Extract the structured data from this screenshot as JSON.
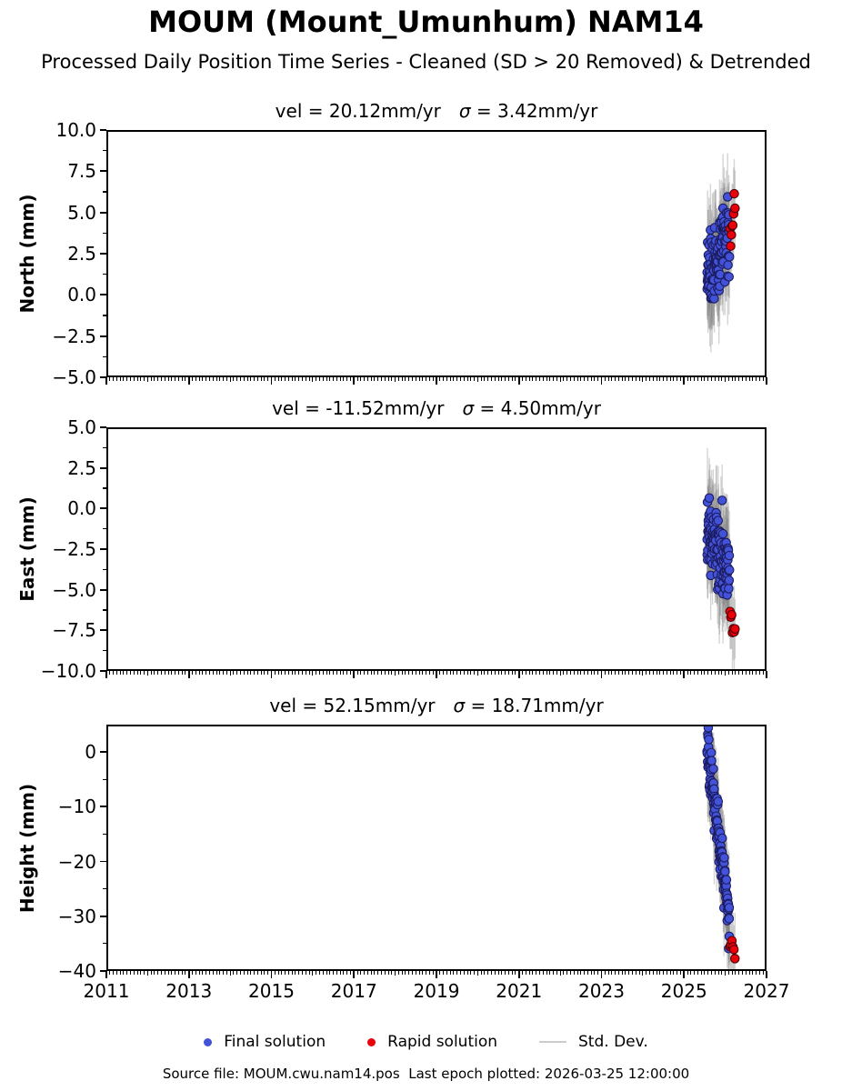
{
  "figure": {
    "title": "MOUM (Mount_Umunhum) NAM14",
    "subtitle": "Processed Daily Position Time Series - Cleaned (SD > 20 Removed) & Detrended",
    "footer": "Source file: MOUM.cwu.nam14.pos  Last epoch plotted: 2026-03-25 12:00:00"
  },
  "legend": {
    "items": [
      {
        "label": "Final solution",
        "color": "#4353d9",
        "type": "dot"
      },
      {
        "label": "Rapid solution",
        "color": "#e8000b",
        "type": "dot"
      },
      {
        "label": "Std. Dev.",
        "color": "#cccccc",
        "type": "line"
      }
    ]
  },
  "x_axis": {
    "lim": [
      2011,
      2027
    ],
    "tick_values": [
      2011,
      2013,
      2015,
      2017,
      2019,
      2021,
      2023,
      2025,
      2027
    ],
    "tick_labels": [
      "2011",
      "2013",
      "2015",
      "2017",
      "2019",
      "2021",
      "2023",
      "2025",
      "2027"
    ],
    "minor_tick_interval_years": 0.08333
  },
  "chart_data": [
    {
      "type": "scatter",
      "id": "north",
      "title_vel": "vel = 20.12mm/yr",
      "title_sigma": "σ = 3.42mm/yr",
      "ylabel": "North (mm)",
      "ylim": [
        -5,
        10
      ],
      "yticks": [
        {
          "v": 10.0,
          "label": "10.0"
        },
        {
          "v": 7.5,
          "label": "7.5"
        },
        {
          "v": 5.0,
          "label": "5.0"
        },
        {
          "v": 2.5,
          "label": "2.5"
        },
        {
          "v": 0.0,
          "label": "0.0"
        },
        {
          "v": -2.5,
          "label": "−2.5"
        },
        {
          "v": -5.0,
          "label": "−5.0"
        }
      ],
      "series": [
        {
          "name": "Final solution",
          "color": "#4353d9",
          "edge": "#1b1b5e",
          "x_start": 2025.56,
          "x_end": 2026.1,
          "n": 135,
          "y_start": 0.9,
          "y_end": 4.0,
          "y_scatter_sd": 1.05,
          "err_halflen_mm": 2.5
        },
        {
          "name": "Rapid solution",
          "color": "#e8000b",
          "edge": "#4d0005",
          "x_start": 2026.115,
          "x_end": 2026.235,
          "n": 8,
          "y_start": 3.6,
          "y_end": 5.9,
          "y_scatter_sd": 0.55,
          "err_halflen_mm": 2.1
        }
      ]
    },
    {
      "type": "scatter",
      "id": "east",
      "title_vel": "vel = -11.52mm/yr",
      "title_sigma": "σ = 4.50mm/yr",
      "ylabel": "East (mm)",
      "ylim": [
        -10,
        5
      ],
      "yticks": [
        {
          "v": 5.0,
          "label": "5.0"
        },
        {
          "v": 2.5,
          "label": "2.5"
        },
        {
          "v": 0.0,
          "label": "0.0"
        },
        {
          "v": -2.5,
          "label": "−2.5"
        },
        {
          "v": -5.0,
          "label": "−5.0"
        },
        {
          "v": -7.5,
          "label": "−7.5"
        },
        {
          "v": -10.0,
          "label": "−10.0"
        }
      ],
      "series": [
        {
          "name": "Final solution",
          "color": "#4353d9",
          "edge": "#1b1b5e",
          "x_start": 2025.56,
          "x_end": 2026.1,
          "n": 135,
          "y_start": -1.1,
          "y_end": -4.3,
          "y_scatter_sd": 1.05,
          "err_halflen_mm": 2.6
        },
        {
          "name": "Rapid solution",
          "color": "#e8000b",
          "edge": "#4d0005",
          "x_start": 2026.115,
          "x_end": 2026.235,
          "n": 7,
          "y_start": -6.3,
          "y_end": -7.9,
          "y_scatter_sd": 0.45,
          "err_halflen_mm": 2.4
        }
      ]
    },
    {
      "type": "scatter",
      "id": "height",
      "title_vel": "vel = 52.15mm/yr",
      "title_sigma": "σ = 18.71mm/yr",
      "ylabel": "Height (mm)",
      "ylim": [
        -40,
        5
      ],
      "yticks": [
        {
          "v": 0,
          "label": "0"
        },
        {
          "v": -10,
          "label": "−10"
        },
        {
          "v": -20,
          "label": "−20"
        },
        {
          "v": -30,
          "label": "−30"
        },
        {
          "v": -40,
          "label": "−40"
        }
      ],
      "series": [
        {
          "name": "Final solution",
          "color": "#4353d9",
          "edge": "#1b1b5e",
          "x_start": 2025.56,
          "x_end": 2026.1,
          "n": 135,
          "y_start": 1.5,
          "y_end": -30.5,
          "y_scatter_sd": 2.2,
          "err_halflen_mm": 7.5
        },
        {
          "name": "Rapid solution",
          "color": "#e8000b",
          "edge": "#4d0005",
          "x_start": 2026.115,
          "x_end": 2026.235,
          "n": 6,
          "y_start": -34.2,
          "y_end": -37.6,
          "y_scatter_sd": 0.9,
          "err_halflen_mm": 6.5
        }
      ]
    }
  ]
}
